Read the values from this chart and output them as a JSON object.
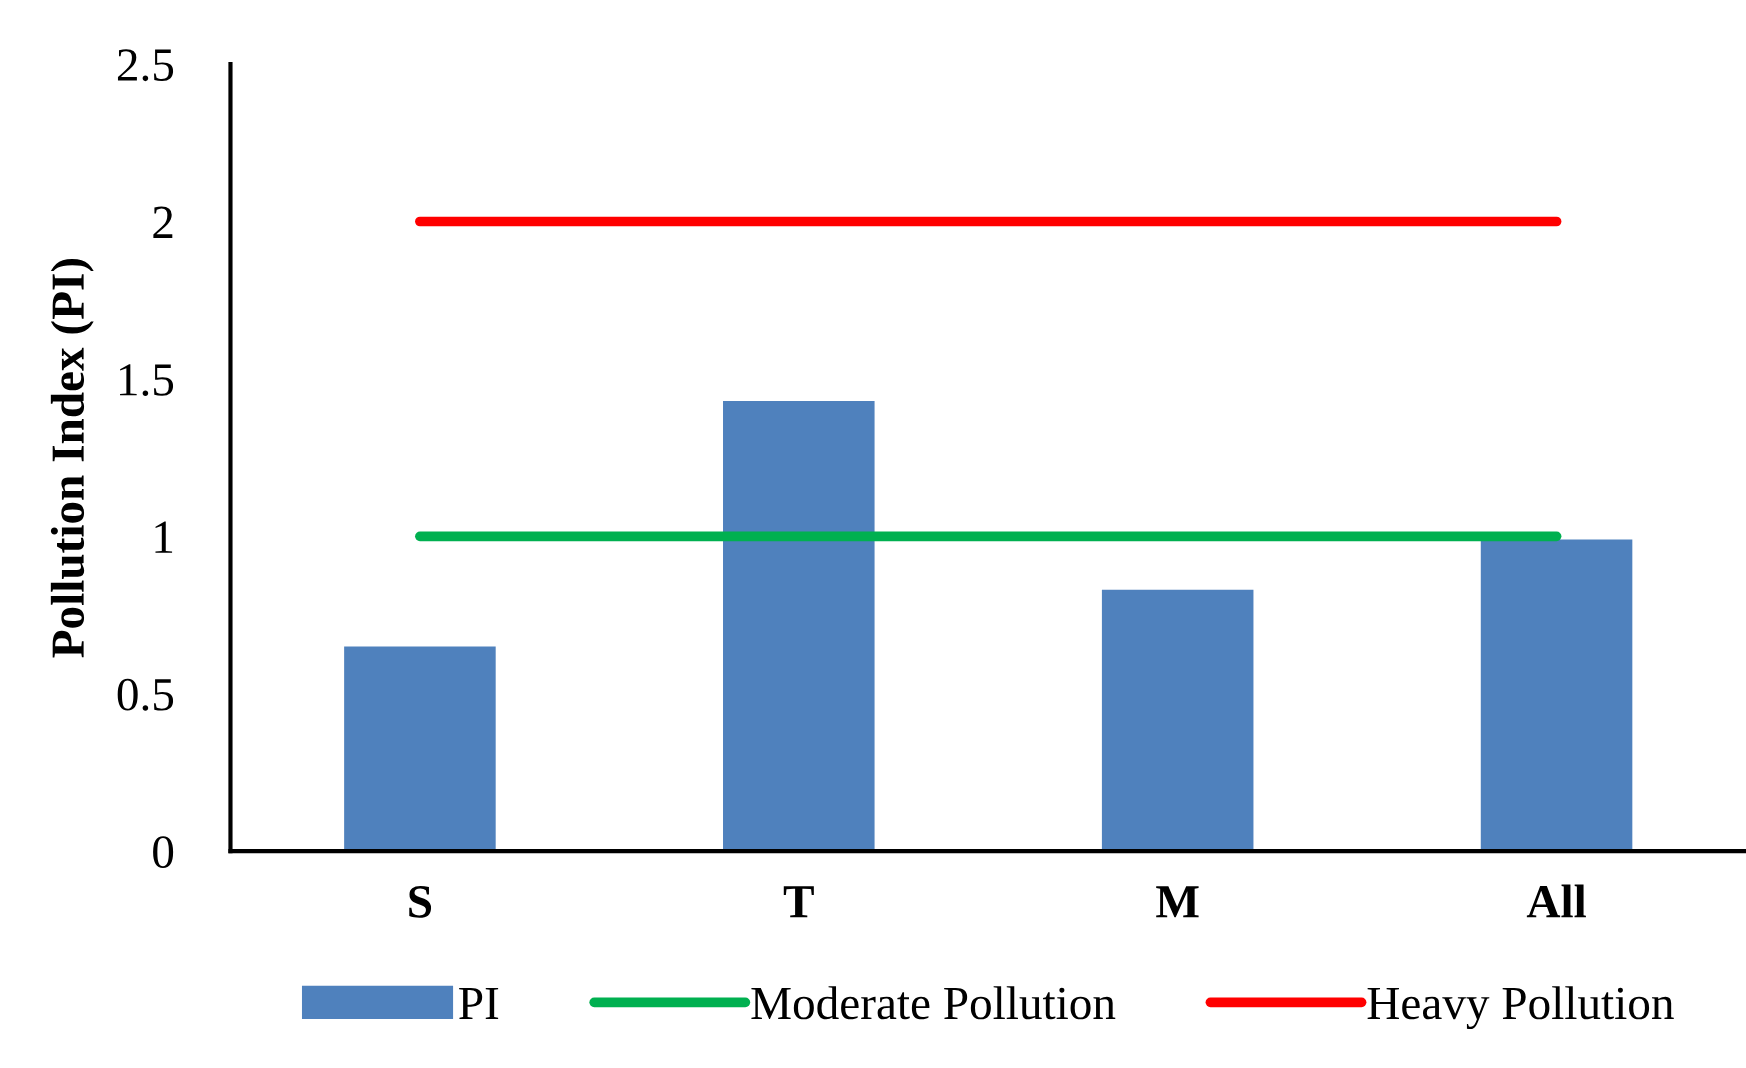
{
  "chart_data": {
    "type": "bar",
    "ylabel": "Pollution Index (PI)",
    "categories": [
      "S",
      "T",
      "M",
      "All"
    ],
    "series": [
      {
        "name": "PI",
        "color": "#4f81bd",
        "values": [
          0.65,
          1.43,
          0.83,
          0.99
        ]
      },
      {
        "name": "Moderate Pollution",
        "type": "line",
        "color": "#00b050",
        "values": [
          1,
          1,
          1,
          1
        ]
      },
      {
        "name": "Heavy Pollution",
        "type": "line",
        "color": "#ff0000",
        "values": [
          2,
          2,
          2,
          2
        ]
      }
    ],
    "ylim": [
      0,
      2.5
    ],
    "yticks": [
      0,
      0.5,
      1,
      1.5,
      2,
      2.5
    ],
    "grid": false,
    "legend": "bottom",
    "marker": "none"
  }
}
